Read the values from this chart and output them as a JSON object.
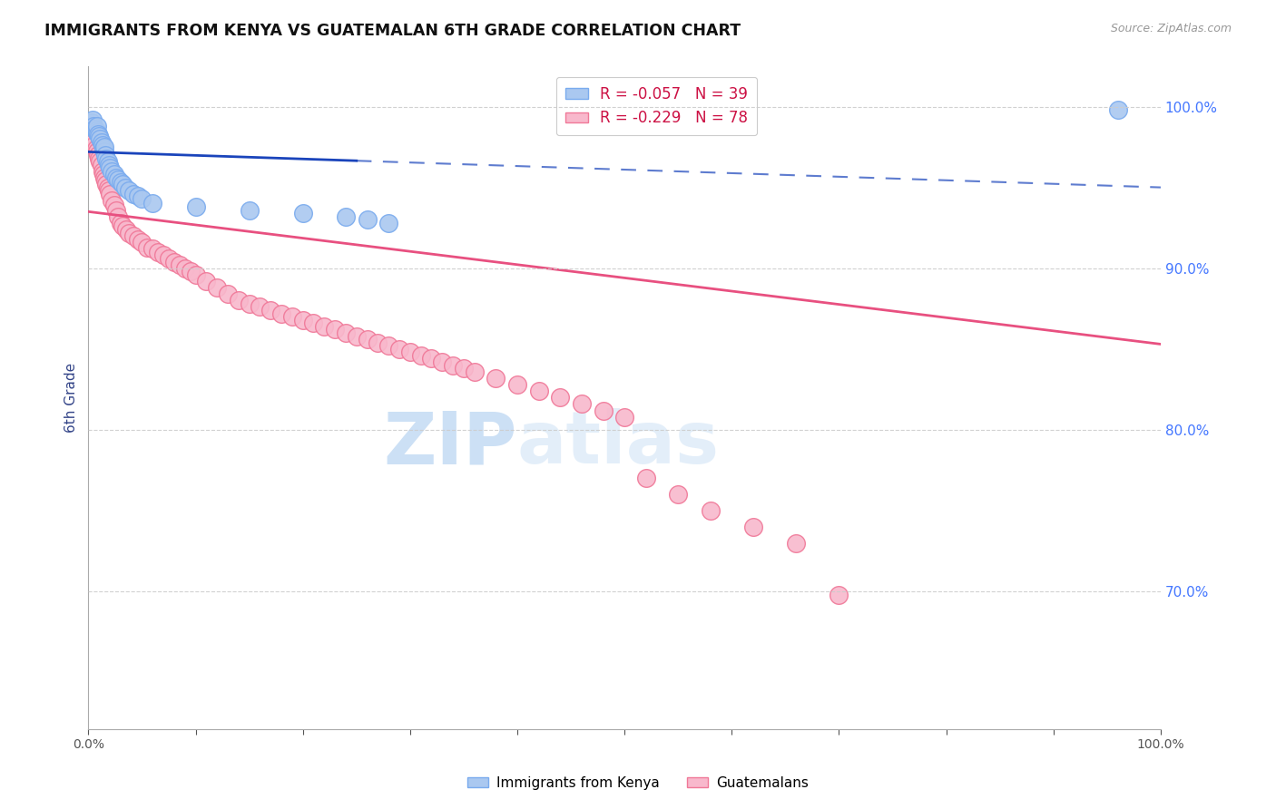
{
  "title": "IMMIGRANTS FROM KENYA VS GUATEMALAN 6TH GRADE CORRELATION CHART",
  "source": "Source: ZipAtlas.com",
  "ylabel": "6th Grade",
  "xmin": 0.0,
  "xmax": 1.0,
  "ymin": 0.615,
  "ymax": 1.025,
  "x_ticks": [
    0.0,
    0.1,
    0.2,
    0.3,
    0.4,
    0.5,
    0.6,
    0.7,
    0.8,
    0.9,
    1.0
  ],
  "x_tick_labels": [
    "0.0%",
    "",
    "",
    "",
    "",
    "",
    "",
    "",
    "",
    "",
    "100.0%"
  ],
  "y_ticks_right": [
    0.7,
    0.8,
    0.9,
    1.0
  ],
  "y_tick_labels_right": [
    "70.0%",
    "80.0%",
    "90.0%",
    "100.0%"
  ],
  "legend_kenya_r": "-0.057",
  "legend_kenya_n": "39",
  "legend_guatemalan_r": "-0.229",
  "legend_guatemalan_n": "78",
  "kenya_color": "#aac8f0",
  "kenya_edge_color": "#7aabee",
  "guatemalan_color": "#f8b8cc",
  "guatemalan_edge_color": "#f07898",
  "kenya_trendline_color": "#1a44bb",
  "guatemalan_trendline_color": "#e85080",
  "watermark_text": "ZIPatlas",
  "watermark_color": "#ddeeff",
  "grid_color": "#cccccc",
  "title_color": "#111111",
  "right_axis_color": "#4477ff",
  "source_color": "#999999",
  "ylabel_color": "#334488",
  "kenya_points_x": [
    0.003,
    0.004,
    0.005,
    0.006,
    0.007,
    0.008,
    0.008,
    0.009,
    0.01,
    0.011,
    0.012,
    0.013,
    0.014,
    0.015,
    0.015,
    0.016,
    0.017,
    0.018,
    0.019,
    0.02,
    0.022,
    0.024,
    0.026,
    0.028,
    0.03,
    0.032,
    0.034,
    0.038,
    0.042,
    0.046,
    0.05,
    0.06,
    0.1,
    0.15,
    0.2,
    0.24,
    0.26,
    0.28,
    0.96
  ],
  "kenya_points_y": [
    0.99,
    0.992,
    0.988,
    0.986,
    0.985,
    0.984,
    0.988,
    0.983,
    0.982,
    0.98,
    0.978,
    0.976,
    0.974,
    0.972,
    0.975,
    0.97,
    0.968,
    0.966,
    0.964,
    0.962,
    0.96,
    0.958,
    0.956,
    0.955,
    0.953,
    0.952,
    0.95,
    0.948,
    0.946,
    0.945,
    0.943,
    0.94,
    0.938,
    0.936,
    0.934,
    0.932,
    0.93,
    0.928,
    0.998
  ],
  "guatemalan_points_x": [
    0.003,
    0.004,
    0.005,
    0.006,
    0.007,
    0.008,
    0.009,
    0.01,
    0.011,
    0.012,
    0.013,
    0.014,
    0.015,
    0.016,
    0.017,
    0.018,
    0.019,
    0.02,
    0.022,
    0.024,
    0.026,
    0.028,
    0.03,
    0.032,
    0.035,
    0.038,
    0.042,
    0.046,
    0.05,
    0.055,
    0.06,
    0.065,
    0.07,
    0.075,
    0.08,
    0.085,
    0.09,
    0.095,
    0.1,
    0.11,
    0.12,
    0.13,
    0.14,
    0.15,
    0.16,
    0.17,
    0.18,
    0.19,
    0.2,
    0.21,
    0.22,
    0.23,
    0.24,
    0.25,
    0.26,
    0.27,
    0.28,
    0.29,
    0.3,
    0.31,
    0.32,
    0.33,
    0.34,
    0.35,
    0.36,
    0.38,
    0.4,
    0.42,
    0.44,
    0.46,
    0.48,
    0.5,
    0.52,
    0.55,
    0.58,
    0.62,
    0.66,
    0.7
  ],
  "guatemalan_points_y": [
    0.984,
    0.98,
    0.978,
    0.976,
    0.974,
    0.972,
    0.97,
    0.968,
    0.966,
    0.964,
    0.96,
    0.958,
    0.956,
    0.954,
    0.952,
    0.95,
    0.948,
    0.946,
    0.942,
    0.939,
    0.936,
    0.932,
    0.928,
    0.926,
    0.924,
    0.922,
    0.92,
    0.918,
    0.916,
    0.913,
    0.912,
    0.91,
    0.908,
    0.906,
    0.904,
    0.902,
    0.9,
    0.898,
    0.896,
    0.892,
    0.888,
    0.884,
    0.88,
    0.878,
    0.876,
    0.874,
    0.872,
    0.87,
    0.868,
    0.866,
    0.864,
    0.862,
    0.86,
    0.858,
    0.856,
    0.854,
    0.852,
    0.85,
    0.848,
    0.846,
    0.844,
    0.842,
    0.84,
    0.838,
    0.836,
    0.832,
    0.828,
    0.824,
    0.82,
    0.816,
    0.812,
    0.808,
    0.77,
    0.76,
    0.75,
    0.74,
    0.73,
    0.698
  ],
  "kenya_trend_x0": 0.0,
  "kenya_trend_y0": 0.972,
  "kenya_trend_x1": 1.0,
  "kenya_trend_y1": 0.95,
  "guatemalan_trend_x0": 0.0,
  "guatemalan_trend_y0": 0.935,
  "guatemalan_trend_x1": 1.0,
  "guatemalan_trend_y1": 0.853
}
